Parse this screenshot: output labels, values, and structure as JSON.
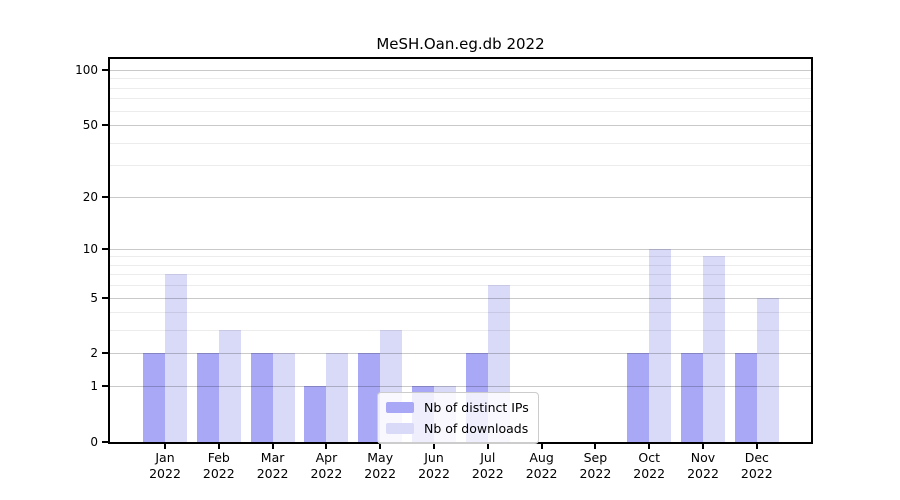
{
  "title": "MeSH.Oan.eg.db 2022",
  "chart_data": {
    "type": "bar",
    "categories": [
      "Jan 2022",
      "Feb 2022",
      "Mar 2022",
      "Apr 2022",
      "May 2022",
      "Jun 2022",
      "Jul 2022",
      "Aug 2022",
      "Sep 2022",
      "Oct 2022",
      "Nov 2022",
      "Dec 2022"
    ],
    "months": [
      "Jan",
      "Feb",
      "Mar",
      "Apr",
      "May",
      "Jun",
      "Jul",
      "Aug",
      "Sep",
      "Oct",
      "Nov",
      "Dec"
    ],
    "year_label": "2022",
    "series": [
      {
        "name": "Nb of distinct IPs",
        "color": "#a8a8f6",
        "values": [
          2,
          2,
          2,
          1,
          2,
          1,
          2,
          0,
          0,
          2,
          2,
          2
        ]
      },
      {
        "name": "Nb of downloads",
        "color": "#d9d9f8",
        "values": [
          7,
          3,
          2,
          2,
          3,
          1,
          6,
          0,
          0,
          10,
          9,
          5
        ]
      }
    ],
    "title": "MeSH.Oan.eg.db 2022",
    "xlabel": "",
    "ylabel": "",
    "y_major_ticks": [
      0,
      1,
      2,
      5,
      10,
      20,
      50,
      100
    ],
    "y_minor_ticks": [
      3,
      4,
      6,
      7,
      8,
      9,
      30,
      40,
      60,
      70,
      80,
      90
    ],
    "scale": "log10(1+y)",
    "ylim": [
      0,
      115
    ],
    "grid": "on",
    "legend_position": "inside lower-center-right"
  },
  "colors": {
    "bar_distinct_ips": "#a8a8f6",
    "bar_downloads": "#d9d9f8",
    "grid_major": "rgba(0,0,0,0.21)",
    "grid_minor": "rgba(0,0,0,0.075)",
    "spine": "#000000",
    "legend_border": "#cccccc",
    "legend_background": "rgba(255,255,255,0.8)",
    "text": "#000000",
    "background": "#ffffff"
  }
}
